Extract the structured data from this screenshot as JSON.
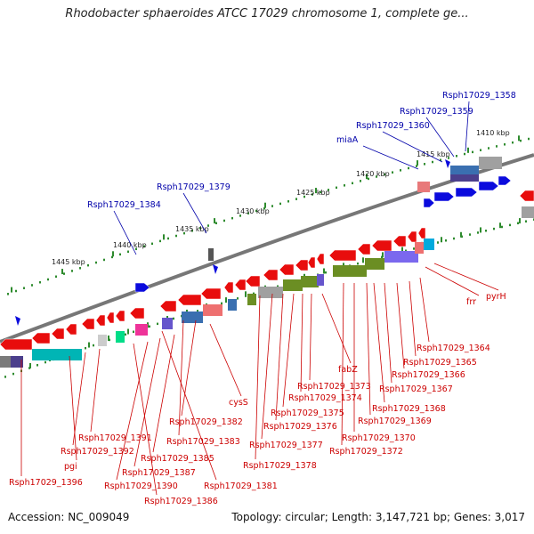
{
  "title": "Rhodobacter sphaeroides ATCC 17029 chromosome 1, complete ge...",
  "accession": "Accession: NC_009049",
  "topology": "Topology: circular; Length: 3,147,721 bp; Genes: 3,017",
  "scale_labels": [
    "1410 kbp",
    "1415 kbp",
    "1420 kbp",
    "1425 kbp",
    "1430 kbp",
    "1435 kbp",
    "1440 kbp",
    "1445 kbp"
  ],
  "blue_gene_labels": [
    "Rsph17029_1358",
    "Rsph17029_1359",
    "Rsph17029_1360",
    "miaA",
    "Rsph17029_1379",
    "Rsph17029_1384"
  ],
  "red_gene_labels": [
    "pyrH",
    "frr",
    "Rsph17029_1364",
    "Rsph17029_1365",
    "Rsph17029_1366",
    "Rsph17029_1367",
    "Rsph17029_1368",
    "Rsph17029_1369",
    "Rsph17029_1370",
    "Rsph17029_1372",
    "fabZ",
    "Rsph17029_1373",
    "Rsph17029_1374",
    "Rsph17029_1375",
    "Rsph17029_1376",
    "Rsph17029_1377",
    "Rsph17029_1378",
    "cysS",
    "Rsph17029_1382",
    "Rsph17029_1383",
    "Rsph17029_1381",
    "Rsph17029_1385",
    "Rsph17029_1387",
    "Rsph17029_1390",
    "Rsph17029_1386",
    "Rsph17029_1391",
    "Rsph17029_1392",
    "pgi",
    "Rsph17029_1396"
  ],
  "colors": {
    "forward_gene": "#0000ee",
    "reverse_gene": "#ee0000",
    "scale_tick": "#228b22",
    "backbone": "#666666",
    "rna_gene": "#00cccc",
    "cds_feature": "#6b8e23",
    "misc_feature": "#7b68ee"
  }
}
